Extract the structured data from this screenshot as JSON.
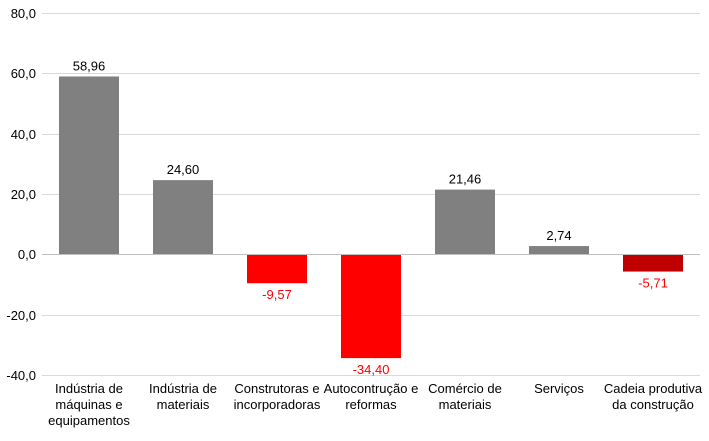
{
  "chart_data": {
    "type": "bar",
    "title": "",
    "xlabel": "",
    "ylabel": "",
    "ylim": [
      -40,
      80
    ],
    "yticks": [
      80,
      60,
      40,
      20,
      0,
      -20,
      -40
    ],
    "ytick_labels": [
      "80,0",
      "60,0",
      "40,0",
      "20,0",
      "0,0",
      "-20,0",
      "-40,0"
    ],
    "grid": true,
    "legend": "none",
    "categories": [
      [
        "Indústria de",
        "máquinas e",
        "equipamentos"
      ],
      [
        "Indústria de",
        "materiais"
      ],
      [
        "Construtoras e",
        "incorporadoras"
      ],
      [
        "Autocontrução e",
        "reformas"
      ],
      [
        "Comércio de",
        "materiais"
      ],
      [
        "Serviços"
      ],
      [
        "Cadeia produtiva",
        "da construção"
      ]
    ],
    "values": [
      58.96,
      24.6,
      -9.57,
      -34.4,
      21.46,
      2.74,
      -5.71
    ],
    "value_labels": [
      "58,96",
      "24,60",
      "-9,57",
      "-34,40",
      "21,46",
      "2,74",
      "-5,71"
    ],
    "bar_colors": [
      "#808080",
      "#808080",
      "#ff0000",
      "#ff0000",
      "#808080",
      "#808080",
      "#c00000"
    ],
    "positive_label_color": "#000000",
    "negative_label_color": "#ff0000"
  },
  "colors": {
    "gridline": "#d9d9d9",
    "axis": "#bfbfbf"
  }
}
